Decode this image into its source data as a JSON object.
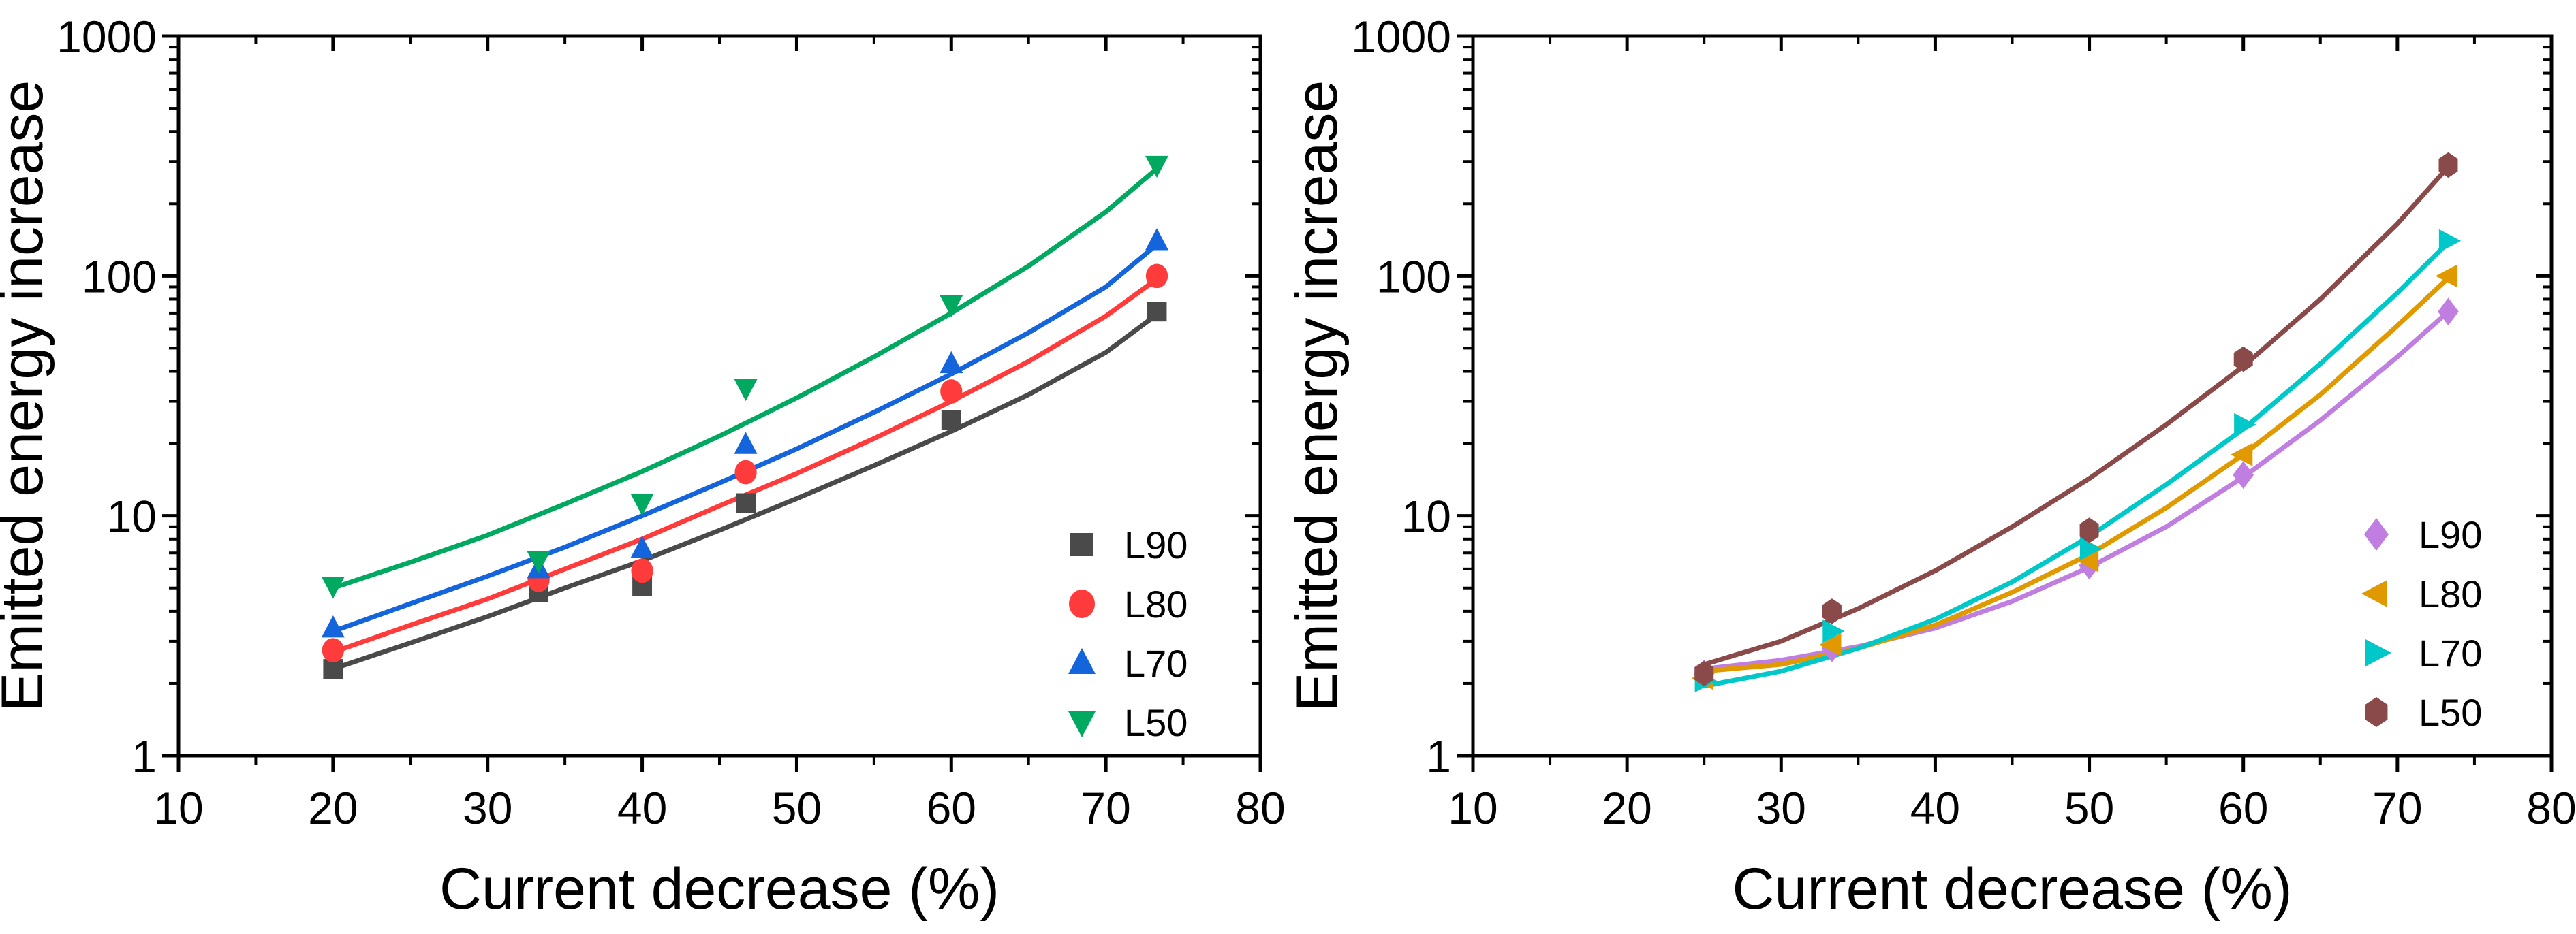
{
  "chart_data": [
    {
      "type": "scatter",
      "title": "",
      "xlabel": "Current decrease (%)",
      "ylabel": "Emitted energy increase",
      "xlim": [
        10,
        80
      ],
      "ylim": [
        1,
        1000
      ],
      "yscale": "log",
      "xticks": [
        "10",
        "20",
        "30",
        "40",
        "50",
        "60",
        "70",
        "80"
      ],
      "yticks": [
        "1",
        "10",
        "100",
        "1000"
      ],
      "legend_position": "bottom-right",
      "series": [
        {
          "name": "L90",
          "color": "#4a4a4a",
          "marker": "square",
          "x": [
            20,
            33.3,
            40,
            46.7,
            60,
            73.3
          ],
          "y": [
            2.3,
            4.8,
            5.1,
            11.3,
            25,
            71
          ],
          "fit": [
            [
              20,
              2.3
            ],
            [
              25,
              2.95
            ],
            [
              30,
              3.8
            ],
            [
              35,
              5.0
            ],
            [
              40,
              6.5
            ],
            [
              45,
              8.7
            ],
            [
              50,
              11.8
            ],
            [
              55,
              16.2
            ],
            [
              60,
              22.5
            ],
            [
              65,
              32
            ],
            [
              70,
              48
            ],
            [
              73.3,
              69
            ]
          ]
        },
        {
          "name": "L80",
          "color": "#ff3b3b",
          "marker": "circle",
          "x": [
            20,
            33.3,
            40,
            46.7,
            60,
            73.3
          ],
          "y": [
            2.75,
            5.4,
            5.9,
            15.2,
            33,
            100
          ],
          "fit": [
            [
              20,
              2.7
            ],
            [
              25,
              3.5
            ],
            [
              30,
              4.5
            ],
            [
              35,
              6.0
            ],
            [
              40,
              8.0
            ],
            [
              45,
              11
            ],
            [
              50,
              15
            ],
            [
              55,
              21
            ],
            [
              60,
              30
            ],
            [
              65,
              44
            ],
            [
              70,
              68
            ],
            [
              73.3,
              97
            ]
          ]
        },
        {
          "name": "L70",
          "color": "#1464dc",
          "marker": "triangle-up",
          "x": [
            20,
            33.3,
            40,
            46.7,
            60,
            73.3
          ],
          "y": [
            3.4,
            6.0,
            7.3,
            19.8,
            43,
            140
          ],
          "fit": [
            [
              20,
              3.3
            ],
            [
              25,
              4.3
            ],
            [
              30,
              5.6
            ],
            [
              35,
              7.4
            ],
            [
              40,
              10
            ],
            [
              45,
              13.7
            ],
            [
              50,
              19
            ],
            [
              55,
              27
            ],
            [
              60,
              39
            ],
            [
              65,
              58
            ],
            [
              70,
              90
            ],
            [
              73.3,
              135
            ]
          ]
        },
        {
          "name": "L50",
          "color": "#00a860",
          "marker": "triangle-down",
          "x": [
            20,
            33.3,
            40,
            46.7,
            60,
            73.3
          ],
          "y": [
            5.1,
            6.5,
            11.3,
            34,
            76,
            290
          ],
          "fit": [
            [
              20,
              5.0
            ],
            [
              25,
              6.4
            ],
            [
              30,
              8.3
            ],
            [
              35,
              11.2
            ],
            [
              40,
              15.3
            ],
            [
              45,
              21.5
            ],
            [
              50,
              31
            ],
            [
              55,
              46
            ],
            [
              60,
              70
            ],
            [
              65,
              110
            ],
            [
              70,
              185
            ],
            [
              73.3,
              280
            ]
          ]
        }
      ]
    },
    {
      "type": "scatter",
      "title": "",
      "xlabel": "Current decrease (%)",
      "ylabel": "Emitted energy increase",
      "xlim": [
        10,
        80
      ],
      "ylim": [
        1,
        1000
      ],
      "yscale": "log",
      "xticks": [
        "10",
        "20",
        "30",
        "40",
        "50",
        "60",
        "70",
        "80"
      ],
      "yticks": [
        "1",
        "10",
        "100",
        "1000"
      ],
      "legend_position": "bottom-right",
      "series": [
        {
          "name": "L90",
          "color": "#c07ee0",
          "marker": "diamond",
          "x": [
            25,
            33.3,
            50,
            60,
            73.3
          ],
          "y": [
            2.2,
            2.8,
            6.2,
            14.8,
            71
          ],
          "fit": [
            [
              25,
              2.3
            ],
            [
              30,
              2.5
            ],
            [
              35,
              2.85
            ],
            [
              40,
              3.4
            ],
            [
              45,
              4.4
            ],
            [
              50,
              6.1
            ],
            [
              55,
              9
            ],
            [
              60,
              14.5
            ],
            [
              65,
              25
            ],
            [
              70,
              46
            ],
            [
              73.3,
              71
            ]
          ]
        },
        {
          "name": "L80",
          "color": "#e09a00",
          "marker": "triangle-left",
          "x": [
            25,
            33.3,
            50,
            60,
            73.3
          ],
          "y": [
            2.1,
            2.9,
            6.5,
            18,
            100
          ],
          "fit": [
            [
              25,
              2.25
            ],
            [
              30,
              2.4
            ],
            [
              35,
              2.8
            ],
            [
              40,
              3.5
            ],
            [
              45,
              4.8
            ],
            [
              50,
              6.9
            ],
            [
              55,
              10.8
            ],
            [
              60,
              18
            ],
            [
              65,
              32
            ],
            [
              70,
              62
            ],
            [
              73.3,
              98
            ]
          ]
        },
        {
          "name": "L70",
          "color": "#00c8c8",
          "marker": "triangle-right",
          "x": [
            25,
            33.3,
            50,
            60,
            73.3
          ],
          "y": [
            2.05,
            3.3,
            7.3,
            24,
            140
          ],
          "fit": [
            [
              25,
              1.95
            ],
            [
              30,
              2.25
            ],
            [
              35,
              2.8
            ],
            [
              40,
              3.7
            ],
            [
              45,
              5.3
            ],
            [
              50,
              8.2
            ],
            [
              55,
              13.5
            ],
            [
              60,
              23
            ],
            [
              65,
              43
            ],
            [
              70,
              85
            ],
            [
              73.3,
              138
            ]
          ]
        },
        {
          "name": "L50",
          "color": "#8b4a4a",
          "marker": "hexagon",
          "x": [
            25,
            33.3,
            50,
            60,
            73.3
          ],
          "y": [
            2.2,
            4.0,
            8.7,
            45,
            290
          ],
          "fit": [
            [
              25,
              2.4
            ],
            [
              30,
              3.0
            ],
            [
              35,
              4.1
            ],
            [
              40,
              5.9
            ],
            [
              45,
              9
            ],
            [
              50,
              14.3
            ],
            [
              55,
              24
            ],
            [
              60,
              42
            ],
            [
              65,
              80
            ],
            [
              70,
              165
            ],
            [
              73.3,
              285
            ]
          ]
        }
      ]
    }
  ]
}
